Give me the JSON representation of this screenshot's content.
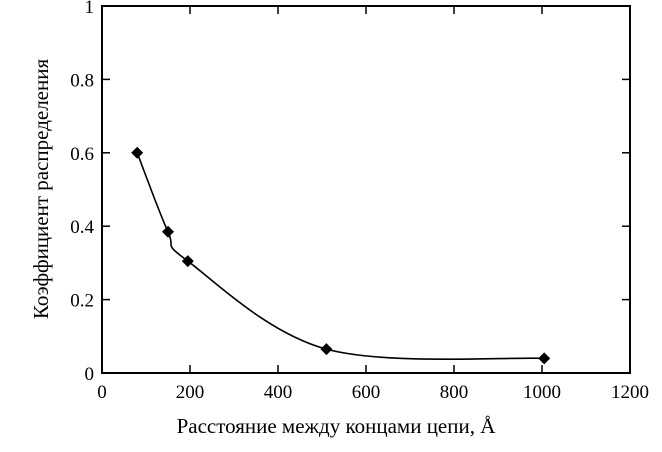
{
  "chart_data": {
    "type": "line",
    "title": "",
    "xlabel": "Расстояние между концами цепи, Å",
    "ylabel": "Коэффициент распределения",
    "xlim": [
      0,
      1200
    ],
    "ylim": [
      0,
      1
    ],
    "x_ticks": [
      0,
      200,
      400,
      600,
      800,
      1000,
      1200
    ],
    "y_ticks": [
      0,
      0.2,
      0.4,
      0.6,
      0.8,
      1
    ],
    "y_tick_labels": [
      "0",
      "0.2",
      "0.4",
      "0.6",
      "0.8",
      "1"
    ],
    "grid": false,
    "legend": "none",
    "marker": "diamond",
    "color": "#000000",
    "series": [
      {
        "x": [
          80,
          150,
          195,
          510,
          1005
        ],
        "y": [
          0.6,
          0.385,
          0.305,
          0.065,
          0.04
        ]
      }
    ]
  }
}
